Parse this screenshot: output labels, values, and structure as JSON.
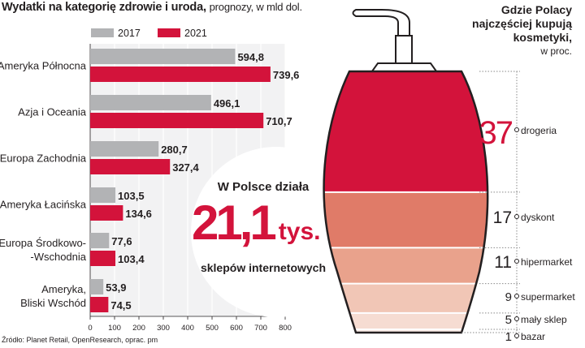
{
  "title": "Wydatki na kategorię zdrowie i uroda,",
  "subtitle": "prognozy, w mld dol.",
  "source": "Źródło: Planet Retail, OpenResearch, oprac. pm",
  "colors": {
    "y2017": "#b2b3b5",
    "y2021": "#d3133b"
  },
  "chart_data": [
    {
      "type": "bar",
      "orientation": "horizontal",
      "title": "Wydatki na kategorię zdrowie i uroda,",
      "subtitle": "prognozy, w mld dol.",
      "categories": [
        [
          "Ameryka Północna"
        ],
        [
          "Azja i Oceania"
        ],
        [
          "Europa Zachodnia"
        ],
        [
          "Ameryka Łacińska"
        ],
        [
          "Europa Środkowo-",
          "-Wschodnia"
        ],
        [
          "Ameryka,",
          "Bliski Wschód"
        ]
      ],
      "series": [
        {
          "name": "2017",
          "values": [
            594.8,
            496.1,
            280.7,
            103.5,
            77.6,
            53.9
          ],
          "labels": [
            "594,8",
            "496,1",
            "280,7",
            "103,5",
            "77,6",
            "53,9"
          ]
        },
        {
          "name": "2021",
          "values": [
            739.6,
            710.7,
            327.4,
            134.6,
            103.4,
            74.5
          ],
          "labels": [
            "739,6",
            "710,7",
            "327,4",
            "134,6",
            "103,4",
            "74,5"
          ]
        }
      ],
      "xlim": [
        0,
        800
      ],
      "xticks": [
        0,
        100,
        200,
        300,
        400,
        500,
        600,
        700,
        800
      ],
      "grid": true,
      "legend": "top"
    },
    {
      "type": "stacked-bar",
      "title": "Gdzie Polacy najczęściej kupują kosmetyki,",
      "title_lines": [
        "Gdzie Polacy",
        "najczęściej kupują",
        "kosmetyki,"
      ],
      "subtitle": "w proc.",
      "segments": [
        {
          "label": "drogeria",
          "value": 37,
          "color": "#d3133b"
        },
        {
          "label": "dyskont",
          "value": 17,
          "color": "#e07b68"
        },
        {
          "label": "hipermarket",
          "value": 11,
          "color": "#e9a28c"
        },
        {
          "label": "supermarket",
          "value": 9,
          "color": "#f1c6b6"
        },
        {
          "label": "mały sklep",
          "value": 5,
          "color": "#f6dcd2"
        },
        {
          "label": "bazar",
          "value": 1,
          "color": "#fbece6"
        }
      ]
    }
  ],
  "callout": {
    "line1": "W Polsce działa",
    "number": "21,1",
    "unit": "tys.",
    "line3": "sklepów internetowych"
  }
}
